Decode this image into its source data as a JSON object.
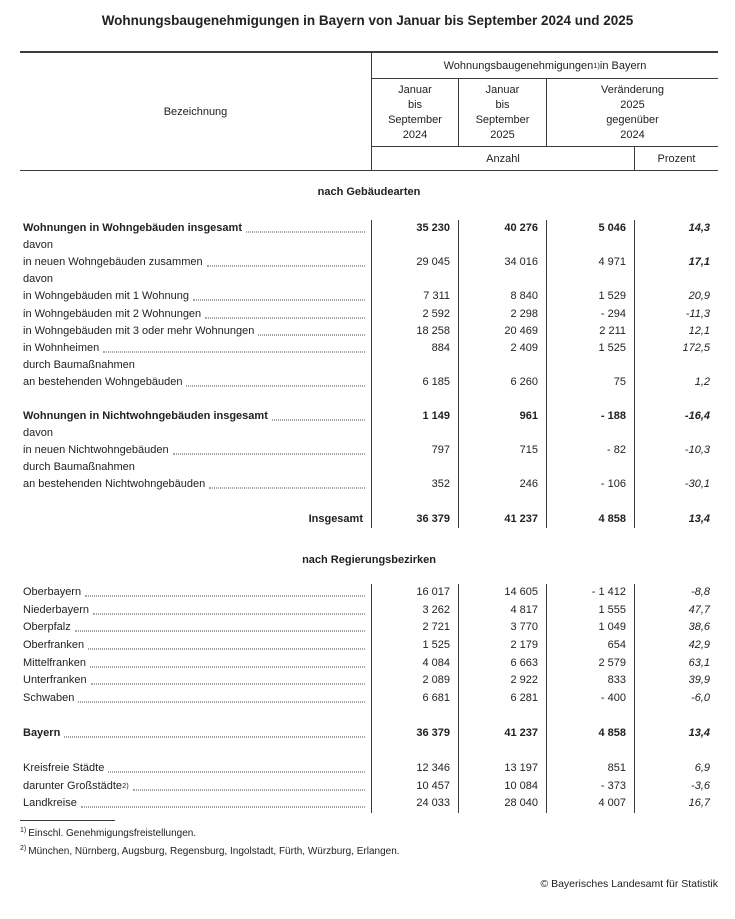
{
  "title": "Wohnungsbaugenehmigungen in Bayern von Januar bis September 2024 und 2025",
  "colors": {
    "text": "#222222",
    "line": "#3c3c3c"
  },
  "header": {
    "bezeichnung": "Bezeichnung",
    "group_pre": "Wohnungsbaugenehmigungen",
    "group_sup": "1)",
    "group_post": " in Bayern",
    "col_2024": "Januar\nbis\nSeptember\n2024",
    "col_2025": "Januar\nbis\nSeptember\n2025",
    "col_change": "Veränderung\n2025\ngegenüber\n2024",
    "unit_count": "Anzahl",
    "unit_percent": "Prozent"
  },
  "sections": [
    {
      "heading": "nach Gebäudearten",
      "rows": [
        {
          "label": "Wohnungen in Wohngebäuden insgesamt",
          "bold": true,
          "leader": true,
          "values": [
            "35 230",
            "40 276",
            "5 046",
            "14,3"
          ],
          "pct_bold": true
        },
        {
          "label": "davon"
        },
        {
          "label": "in neuen Wohngebäuden zusammen",
          "leader": true,
          "values": [
            "29 045",
            "34 016",
            "4 971",
            "17,1"
          ],
          "pct_bold": true
        },
        {
          "label": "davon"
        },
        {
          "label": "in Wohngebäuden mit 1 Wohnung",
          "leader": true,
          "values": [
            "7 311",
            "8 840",
            "1 529",
            "20,9"
          ]
        },
        {
          "label": "in Wohngebäuden mit 2 Wohnungen",
          "leader": true,
          "values": [
            "2 592",
            "2 298",
            "- 294",
            "-11,3"
          ]
        },
        {
          "label": "in Wohngebäuden mit 3 oder mehr Wohnungen",
          "leader": true,
          "values": [
            "18 258",
            "20 469",
            "2 211",
            "12,1"
          ]
        },
        {
          "label": "in Wohnheimen",
          "leader": true,
          "values": [
            "884",
            "2 409",
            "1 525",
            "172,5"
          ]
        },
        {
          "label": "durch Baumaßnahmen"
        },
        {
          "label": "an bestehenden Wohngebäuden",
          "leader": true,
          "values": [
            "6 185",
            "6 260",
            "75",
            "1,2"
          ]
        },
        {
          "spacer": true,
          "label": ""
        },
        {
          "label": "Wohnungen in Nichtwohngebäuden insgesamt",
          "bold": true,
          "leader": true,
          "values": [
            "1 149",
            "961",
            "- 188",
            "-16,4"
          ],
          "pct_bold": true
        },
        {
          "label": "davon"
        },
        {
          "label": "in neuen Nichtwohngebäuden",
          "leader": true,
          "values": [
            "797",
            "715",
            "- 82",
            "-10,3"
          ]
        },
        {
          "label": "durch Baumaßnahmen"
        },
        {
          "label": "an bestehenden Nichtwohngebäuden",
          "leader": true,
          "values": [
            "352",
            "246",
            "- 106",
            "-30,1"
          ]
        },
        {
          "spacer": true,
          "label": ""
        },
        {
          "label": "Insgesamt",
          "bold": true,
          "align": "right",
          "values": [
            "36 379",
            "41 237",
            "4 858",
            "13,4"
          ],
          "pct_bold": true
        }
      ]
    },
    {
      "heading": "nach Regierungsbezirken",
      "rows": [
        {
          "label": "Oberbayern",
          "leader": true,
          "values": [
            "16 017",
            "14 605",
            "- 1 412",
            "-8,8"
          ]
        },
        {
          "label": "Niederbayern",
          "leader": true,
          "values": [
            "3 262",
            "4 817",
            "1 555",
            "47,7"
          ]
        },
        {
          "label": "Oberpfalz",
          "leader": true,
          "values": [
            "2 721",
            "3 770",
            "1 049",
            "38,6"
          ]
        },
        {
          "label": "Oberfranken",
          "leader": true,
          "values": [
            "1 525",
            "2 179",
            "654",
            "42,9"
          ]
        },
        {
          "label": "Mittelfranken",
          "leader": true,
          "values": [
            "4 084",
            "6 663",
            "2 579",
            "63,1"
          ]
        },
        {
          "label": "Unterfranken",
          "leader": true,
          "values": [
            "2 089",
            "2 922",
            "833",
            "39,9"
          ]
        },
        {
          "label": "Schwaben",
          "leader": true,
          "values": [
            "6 681",
            "6 281",
            "- 400",
            "-6,0"
          ]
        },
        {
          "spacer": true,
          "label": ""
        },
        {
          "label": "Bayern",
          "bold": true,
          "leader": true,
          "values": [
            "36 379",
            "41 237",
            "4 858",
            "13,4"
          ],
          "pct_bold": true
        },
        {
          "spacer": true,
          "label": ""
        },
        {
          "label": "Kreisfreie Städte",
          "leader": true,
          "values": [
            "12 346",
            "13 197",
            "851",
            "6,9"
          ]
        },
        {
          "label": "darunter Großstädte",
          "sup": "2)",
          "leader": true,
          "values": [
            "10 457",
            "10 084",
            "- 373",
            "-3,6"
          ]
        },
        {
          "label": "Landkreise",
          "leader": true,
          "values": [
            "24 033",
            "28 040",
            "4 007",
            "16,7"
          ]
        }
      ]
    }
  ],
  "footnotes": [
    {
      "sup": "1)",
      "text": "Einschl. Genehmigungsfreistellungen."
    },
    {
      "sup": "2)",
      "text": "München, Nürnberg, Augsburg, Regensburg, Ingolstadt, Fürth, Würzburg, Erlangen."
    }
  ],
  "copyright": "© Bayerisches Landesamt für Statistik"
}
